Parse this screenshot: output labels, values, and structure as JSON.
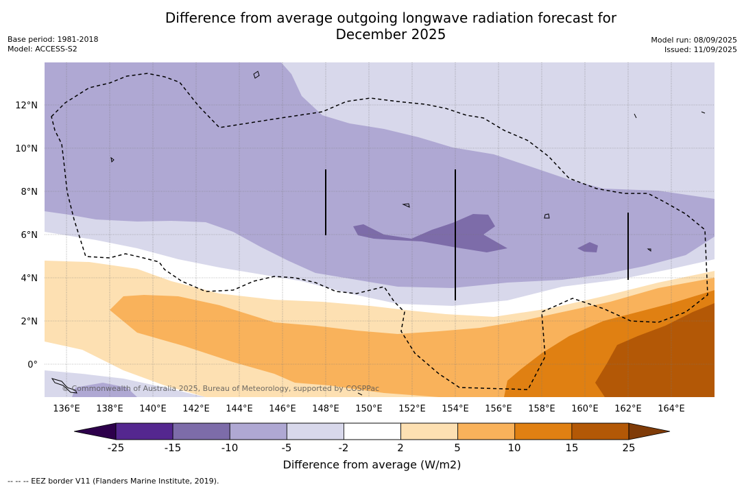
{
  "title_line1": "Difference from average outgoing longwave radiation forecast for",
  "title_line2": "December 2025",
  "meta": {
    "base_period": "Base period: 1981-2018",
    "model": "Model: ACCESS-S2",
    "model_run": "Model run: 08/09/2025",
    "issued": "Issued: 11/09/2025"
  },
  "copyright": "© Commonwealth of Australia 2025, Bureau of Meteorology, supported by COSPPac",
  "colorbar": {
    "title": "Difference from average (W/m2)",
    "ticks": [
      "-25",
      "-15",
      "-10",
      "-5",
      "-2",
      "2",
      "5",
      "10",
      "15",
      "25"
    ],
    "colors": [
      "#54278f",
      "#7d6ca9",
      "#afa8d3",
      "#d8d8eb",
      "#ffffff",
      "#fde0b2",
      "#f9b25b",
      "#e08012",
      "#b35806"
    ],
    "under_color": "#2d004b",
    "over_color": "#7f3b08"
  },
  "axes": {
    "lon_labels": [
      "136°E",
      "138°E",
      "140°E",
      "142°E",
      "144°E",
      "146°E",
      "148°E",
      "150°E",
      "152°E",
      "154°E",
      "156°E",
      "158°E",
      "160°E",
      "162°E",
      "164°E"
    ],
    "lat_labels": [
      "12°N",
      "10°N",
      "8°N",
      "6°N",
      "4°N",
      "2°N",
      "0°"
    ]
  },
  "legend_footer": "--  --  -- EEZ border V11 (Flanders Marine Institute, 2019)."
}
